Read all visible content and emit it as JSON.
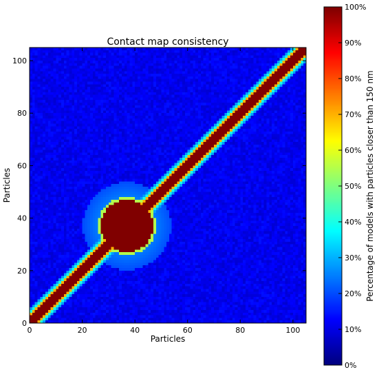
{
  "chart_data": {
    "type": "heatmap",
    "title": "Contact map consistency",
    "xlabel": "Particles",
    "ylabel": "Particles",
    "xlim": [
      0,
      105
    ],
    "ylim": [
      0,
      105
    ],
    "x_ticks": [
      0,
      20,
      40,
      60,
      80,
      100
    ],
    "y_ticks": [
      0,
      20,
      40,
      60,
      80,
      100
    ],
    "grid": false,
    "colormap": "jet",
    "colorbar": {
      "label": "Percentage of models with particles closer than 150 nm",
      "ticks": [
        "0%",
        "10%",
        "20%",
        "30%",
        "40%",
        "50%",
        "60%",
        "70%",
        "80%",
        "90%",
        "100%"
      ],
      "range": [
        0,
        100
      ]
    },
    "matrix_size": 105,
    "cell_values_percent": {
      "diagonal_band": 100,
      "dense_cluster_region": {
        "rows": [
          26,
          47
        ],
        "cols": [
          26,
          47
        ],
        "value": 100
      },
      "cluster_edge": 55,
      "near_diagonal": 40,
      "cluster_halo": 25,
      "background": 8
    }
  }
}
